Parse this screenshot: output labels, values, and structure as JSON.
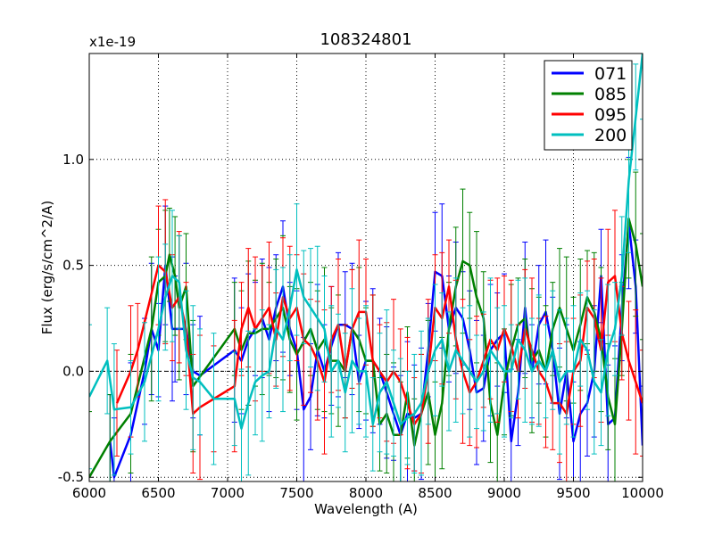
{
  "chart_data": {
    "type": "line",
    "title": "108324801",
    "xlabel": "Wavelength (A)",
    "ylabel": "Flux (erg/s/cm^2/A)",
    "y_scale_label": "x1e-19",
    "xlim": [
      6000,
      10000
    ],
    "ylim": [
      -0.52,
      1.5
    ],
    "x_ticks": [
      6000,
      6500,
      7000,
      7500,
      8000,
      8500,
      9000,
      9500,
      10000
    ],
    "x_tick_labels": [
      "6000",
      "6500",
      "7000",
      "7500",
      "8000",
      "8500",
      "9000",
      "9500",
      "10000"
    ],
    "y_ticks": [
      -0.5,
      0.0,
      0.5,
      1.0
    ],
    "y_tick_labels": [
      "-0.5",
      "0.0",
      "0.5",
      "1.0"
    ],
    "grid": true,
    "zero_line": true,
    "legend_position": "top-right",
    "series": [
      {
        "name": "071",
        "color": "#0000ff",
        "x": [
          6150,
          6180,
          6300,
          6400,
          6450,
          6500,
          6550,
          6600,
          6620,
          6700,
          6750,
          6800,
          7050,
          7100,
          7150,
          7200,
          7250,
          7300,
          7350,
          7400,
          7450,
          7500,
          7550,
          7600,
          7650,
          7700,
          7750,
          7800,
          7850,
          7900,
          7950,
          8000,
          8050,
          8100,
          8150,
          8200,
          8250,
          8300,
          8350,
          8400,
          8450,
          8500,
          8550,
          8600,
          8650,
          8700,
          8750,
          8800,
          8850,
          8900,
          8950,
          9000,
          9050,
          9100,
          9150,
          9200,
          9250,
          9300,
          9350,
          9400,
          9450,
          9500,
          9550,
          9600,
          9650,
          9700,
          9750,
          9800,
          9850,
          9900,
          9950,
          10000
        ],
        "y": [
          -0.33,
          -0.5,
          -0.3,
          0.0,
          0.2,
          0.1,
          0.5,
          0.2,
          0.2,
          0.2,
          0.0,
          -0.02,
          0.1,
          0.05,
          0.15,
          0.2,
          0.25,
          0.15,
          0.3,
          0.4,
          0.2,
          0.1,
          -0.18,
          -0.12,
          0.1,
          0.0,
          0.12,
          0.22,
          0.22,
          0.2,
          -0.05,
          0.05,
          0.05,
          0.0,
          -0.1,
          -0.2,
          -0.3,
          -0.2,
          -0.22,
          -0.2,
          0.1,
          0.47,
          0.45,
          0.2,
          0.3,
          0.25,
          0.1,
          -0.1,
          -0.08,
          0.1,
          0.15,
          0.18,
          -0.33,
          -0.1,
          0.3,
          0.0,
          0.22,
          0.28,
          0.1,
          -0.2,
          0.0,
          -0.33,
          -0.2,
          -0.15,
          0.0,
          0.45,
          -0.25,
          -0.22,
          0.3,
          0.7,
          0.4,
          -0.35
        ]
      },
      {
        "name": "085",
        "color": "#008000",
        "x": [
          6000,
          6150,
          6300,
          6450,
          6500,
          6550,
          6580,
          6620,
          6650,
          6700,
          6750,
          7050,
          7100,
          7150,
          7200,
          7250,
          7300,
          7350,
          7400,
          7450,
          7500,
          7600,
          7650,
          7700,
          7750,
          7800,
          7850,
          7900,
          7950,
          8000,
          8050,
          8100,
          8150,
          8200,
          8250,
          8300,
          8350,
          8400,
          8450,
          8500,
          8550,
          8600,
          8650,
          8700,
          8750,
          8800,
          8850,
          8900,
          8950,
          9000,
          9050,
          9100,
          9150,
          9200,
          9250,
          9300,
          9350,
          9400,
          9450,
          9500,
          9550,
          9600,
          9650,
          9700,
          9750,
          9800,
          9850,
          9900,
          9950,
          10000
        ],
        "y": [
          -0.5,
          -0.33,
          -0.2,
          0.2,
          0.42,
          0.45,
          0.55,
          0.45,
          0.3,
          0.4,
          -0.07,
          0.2,
          0.1,
          0.18,
          0.18,
          0.2,
          0.2,
          0.25,
          0.3,
          0.15,
          0.08,
          0.2,
          0.1,
          0.15,
          0.05,
          0.05,
          0.0,
          0.2,
          0.15,
          0.05,
          0.05,
          -0.25,
          -0.2,
          -0.3,
          -0.3,
          -0.1,
          -0.35,
          -0.2,
          -0.1,
          -0.3,
          -0.15,
          0.2,
          0.4,
          0.52,
          0.5,
          0.35,
          0.25,
          -0.15,
          -0.3,
          -0.05,
          0.1,
          0.22,
          0.25,
          0.05,
          0.1,
          0.0,
          0.2,
          0.3,
          0.2,
          0.1,
          0.22,
          0.35,
          0.28,
          0.15,
          -0.12,
          -0.25,
          0.2,
          0.72,
          0.6,
          0.4
        ]
      },
      {
        "name": "095",
        "color": "#ff0000",
        "x": [
          6200,
          6300,
          6350,
          6500,
          6550,
          6600,
          6650,
          6700,
          6750,
          6800,
          6900,
          7050,
          7100,
          7150,
          7200,
          7250,
          7300,
          7350,
          7400,
          7450,
          7500,
          7550,
          7600,
          7650,
          7700,
          7750,
          7800,
          7850,
          7900,
          7950,
          8000,
          8050,
          8100,
          8150,
          8200,
          8250,
          8300,
          8350,
          8400,
          8450,
          8500,
          8550,
          8600,
          8650,
          8700,
          8750,
          8800,
          8850,
          8900,
          8950,
          9000,
          9050,
          9100,
          9150,
          9200,
          9250,
          9300,
          9350,
          9400,
          9450,
          9500,
          9550,
          9600,
          9650,
          9700,
          9750,
          9800,
          9850,
          9900,
          9950,
          10000
        ],
        "y": [
          -0.15,
          0.0,
          0.1,
          0.5,
          0.47,
          0.3,
          0.35,
          0.2,
          -0.2,
          -0.17,
          -0.13,
          -0.07,
          0.2,
          0.3,
          0.2,
          0.25,
          0.3,
          0.15,
          0.35,
          0.25,
          0.3,
          0.15,
          0.12,
          0.05,
          -0.05,
          0.15,
          0.22,
          0.0,
          0.2,
          0.28,
          0.28,
          0.05,
          0.0,
          -0.05,
          0.0,
          -0.05,
          -0.15,
          -0.25,
          -0.2,
          0.0,
          0.3,
          0.25,
          0.4,
          0.15,
          0.0,
          -0.1,
          -0.05,
          0.05,
          0.15,
          0.1,
          0.2,
          0.12,
          0.0,
          0.2,
          0.1,
          0.0,
          -0.05,
          -0.15,
          -0.15,
          -0.2,
          0.0,
          0.05,
          0.3,
          0.25,
          0.1,
          0.42,
          0.45,
          0.18,
          0.05,
          -0.05,
          -0.15
        ]
      },
      {
        "name": "200",
        "color": "#00bfbf",
        "x": [
          6000,
          6130,
          6180,
          6300,
          6400,
          6500,
          6550,
          6600,
          6650,
          6700,
          6750,
          6800,
          6900,
          7050,
          7100,
          7150,
          7200,
          7250,
          7300,
          7350,
          7400,
          7450,
          7500,
          7550,
          7600,
          7650,
          7700,
          7750,
          7800,
          7850,
          7900,
          7950,
          8000,
          8050,
          8100,
          8150,
          8200,
          8250,
          8300,
          8350,
          8400,
          8450,
          8500,
          8550,
          8600,
          8650,
          8700,
          8750,
          8800,
          8850,
          8900,
          8950,
          9000,
          9050,
          9100,
          9150,
          9200,
          9250,
          9300,
          9350,
          9400,
          9450,
          9500,
          9550,
          9600,
          9650,
          9700,
          9750,
          9800,
          9850,
          9900,
          9950,
          10000
        ],
        "y": [
          -0.12,
          0.05,
          -0.18,
          -0.17,
          -0.05,
          0.2,
          0.35,
          0.45,
          0.42,
          0.1,
          -0.03,
          -0.05,
          -0.13,
          -0.13,
          -0.27,
          -0.15,
          -0.05,
          -0.02,
          0.0,
          0.2,
          0.15,
          0.3,
          0.48,
          0.35,
          0.3,
          0.25,
          0.2,
          0.0,
          0.05,
          -0.1,
          0.05,
          0.0,
          0.0,
          -0.25,
          -0.1,
          -0.05,
          -0.15,
          -0.25,
          -0.22,
          -0.2,
          -0.15,
          0.0,
          0.1,
          0.15,
          0.0,
          0.1,
          0.05,
          0.0,
          -0.05,
          0.0,
          0.1,
          0.05,
          0.0,
          0.0,
          0.15,
          0.1,
          0.0,
          0.05,
          0.0,
          0.1,
          -0.05,
          0.0,
          0.0,
          0.15,
          0.1,
          -0.05,
          -0.1,
          0.1,
          0.2,
          0.45,
          0.9,
          1.2,
          1.5
        ]
      }
    ]
  }
}
